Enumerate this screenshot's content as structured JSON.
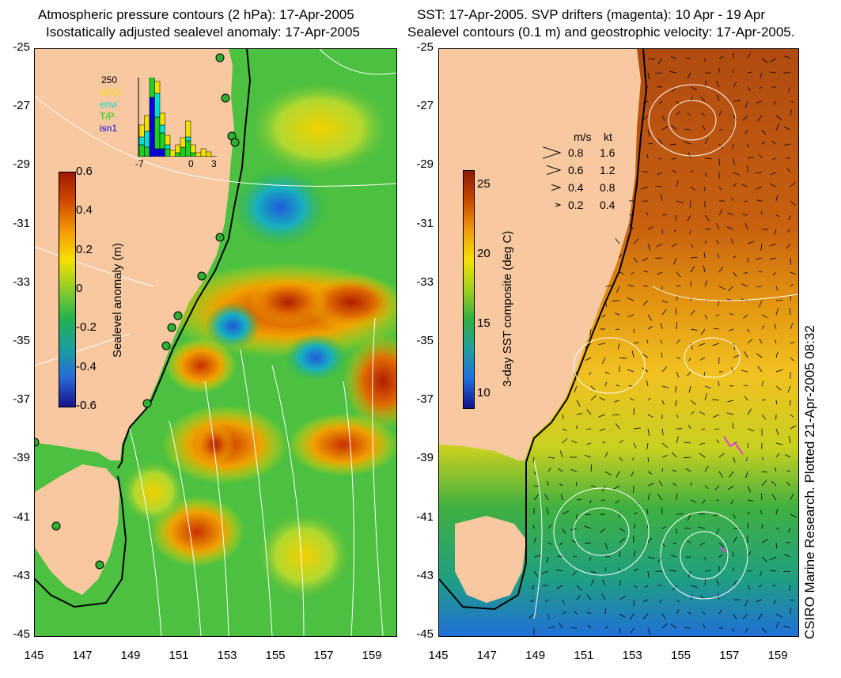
{
  "left_panel": {
    "title_line1": "Atmospheric pressure contours (2 hPa): 17-Apr-2005",
    "title_line2": "Isostatically adjusted sealevel anomaly: 17-Apr-2005",
    "colorbar": {
      "label": "Sealevel anomaly (m)",
      "ticks": [
        "0.6",
        "0.4",
        "0.2",
        "0",
        "-0.2",
        "-0.4",
        "-0.6"
      ],
      "colors": [
        "#a01800",
        "#d04a00",
        "#f49a00",
        "#f6e000",
        "#8ccc2a",
        "#24b050",
        "#1aa0a0",
        "#2a6ad8",
        "#14148c"
      ]
    },
    "histogram": {
      "count_label": "250",
      "legend": [
        {
          "name": "GFO",
          "color": "#f2e000"
        },
        {
          "name": "envi",
          "color": "#00e0d0"
        },
        {
          "name": "T/P",
          "color": "#20d020"
        },
        {
          "name": "isn1",
          "color": "#0000e0"
        }
      ],
      "x_ticks": [
        "-7",
        "0",
        "3"
      ],
      "bars": [
        [
          0.15,
          0.1,
          0.15,
          0
        ],
        [
          0.2,
          0.2,
          0.12,
          0
        ],
        [
          0.15,
          0.15,
          0.6,
          0.75
        ],
        [
          0.15,
          0.3,
          0.4,
          0.1
        ],
        [
          0.15,
          0.1,
          0.2,
          0.1
        ],
        [
          0.12,
          0.05,
          0.1,
          0
        ],
        [
          0.08,
          0,
          0,
          0
        ],
        [
          0.1,
          0,
          0.05,
          0
        ],
        [
          0.12,
          0,
          0.12,
          0
        ],
        [
          0.2,
          0.05,
          0.2,
          0
        ],
        [
          0.1,
          0,
          0.05,
          0
        ],
        [
          0.05,
          0,
          0,
          0
        ],
        [
          0.1,
          0,
          0,
          0
        ],
        [
          0.06,
          0,
          0,
          0
        ]
      ]
    }
  },
  "right_panel": {
    "title_line1": "SST: 17-Apr-2005. SVP drifters (magenta): 10 Apr - 19 Apr",
    "title_line2": "Sealevel contours (0.1 m) and geostrophic velocity: 17-Apr-2005.",
    "colorbar": {
      "label": "3-day SST composite (deg C)",
      "ticks": [
        "25",
        "20",
        "15",
        "10"
      ],
      "colors": [
        "#8a1a00",
        "#c84a00",
        "#f09a10",
        "#f4e000",
        "#a0d020",
        "#30b040",
        "#20a0a0",
        "#1e70e0",
        "#10108c"
      ]
    },
    "velocity_legend": {
      "unit_ms": "m/s",
      "unit_kt": "kt",
      "rows": [
        {
          "ms": "0.8",
          "kt": "1.6"
        },
        {
          "ms": "0.6",
          "kt": "1.2"
        },
        {
          "ms": "0.4",
          "kt": "0.8"
        },
        {
          "ms": "0.2",
          "kt": "0.4"
        }
      ]
    }
  },
  "y_ticks": [
    "-25",
    "-27",
    "-29",
    "-31",
    "-33",
    "-35",
    "-37",
    "-39",
    "-41",
    "-43",
    "-45"
  ],
  "x_ticks": [
    "145",
    "147",
    "149",
    "151",
    "153",
    "155",
    "157",
    "159"
  ],
  "credit": "CSIRO Marine Research. Plotted 21-Apr-2005 08:32",
  "colors": {
    "land": "#f8c8a0",
    "coastline": "#000000",
    "tide_gauge": "#30b030"
  }
}
